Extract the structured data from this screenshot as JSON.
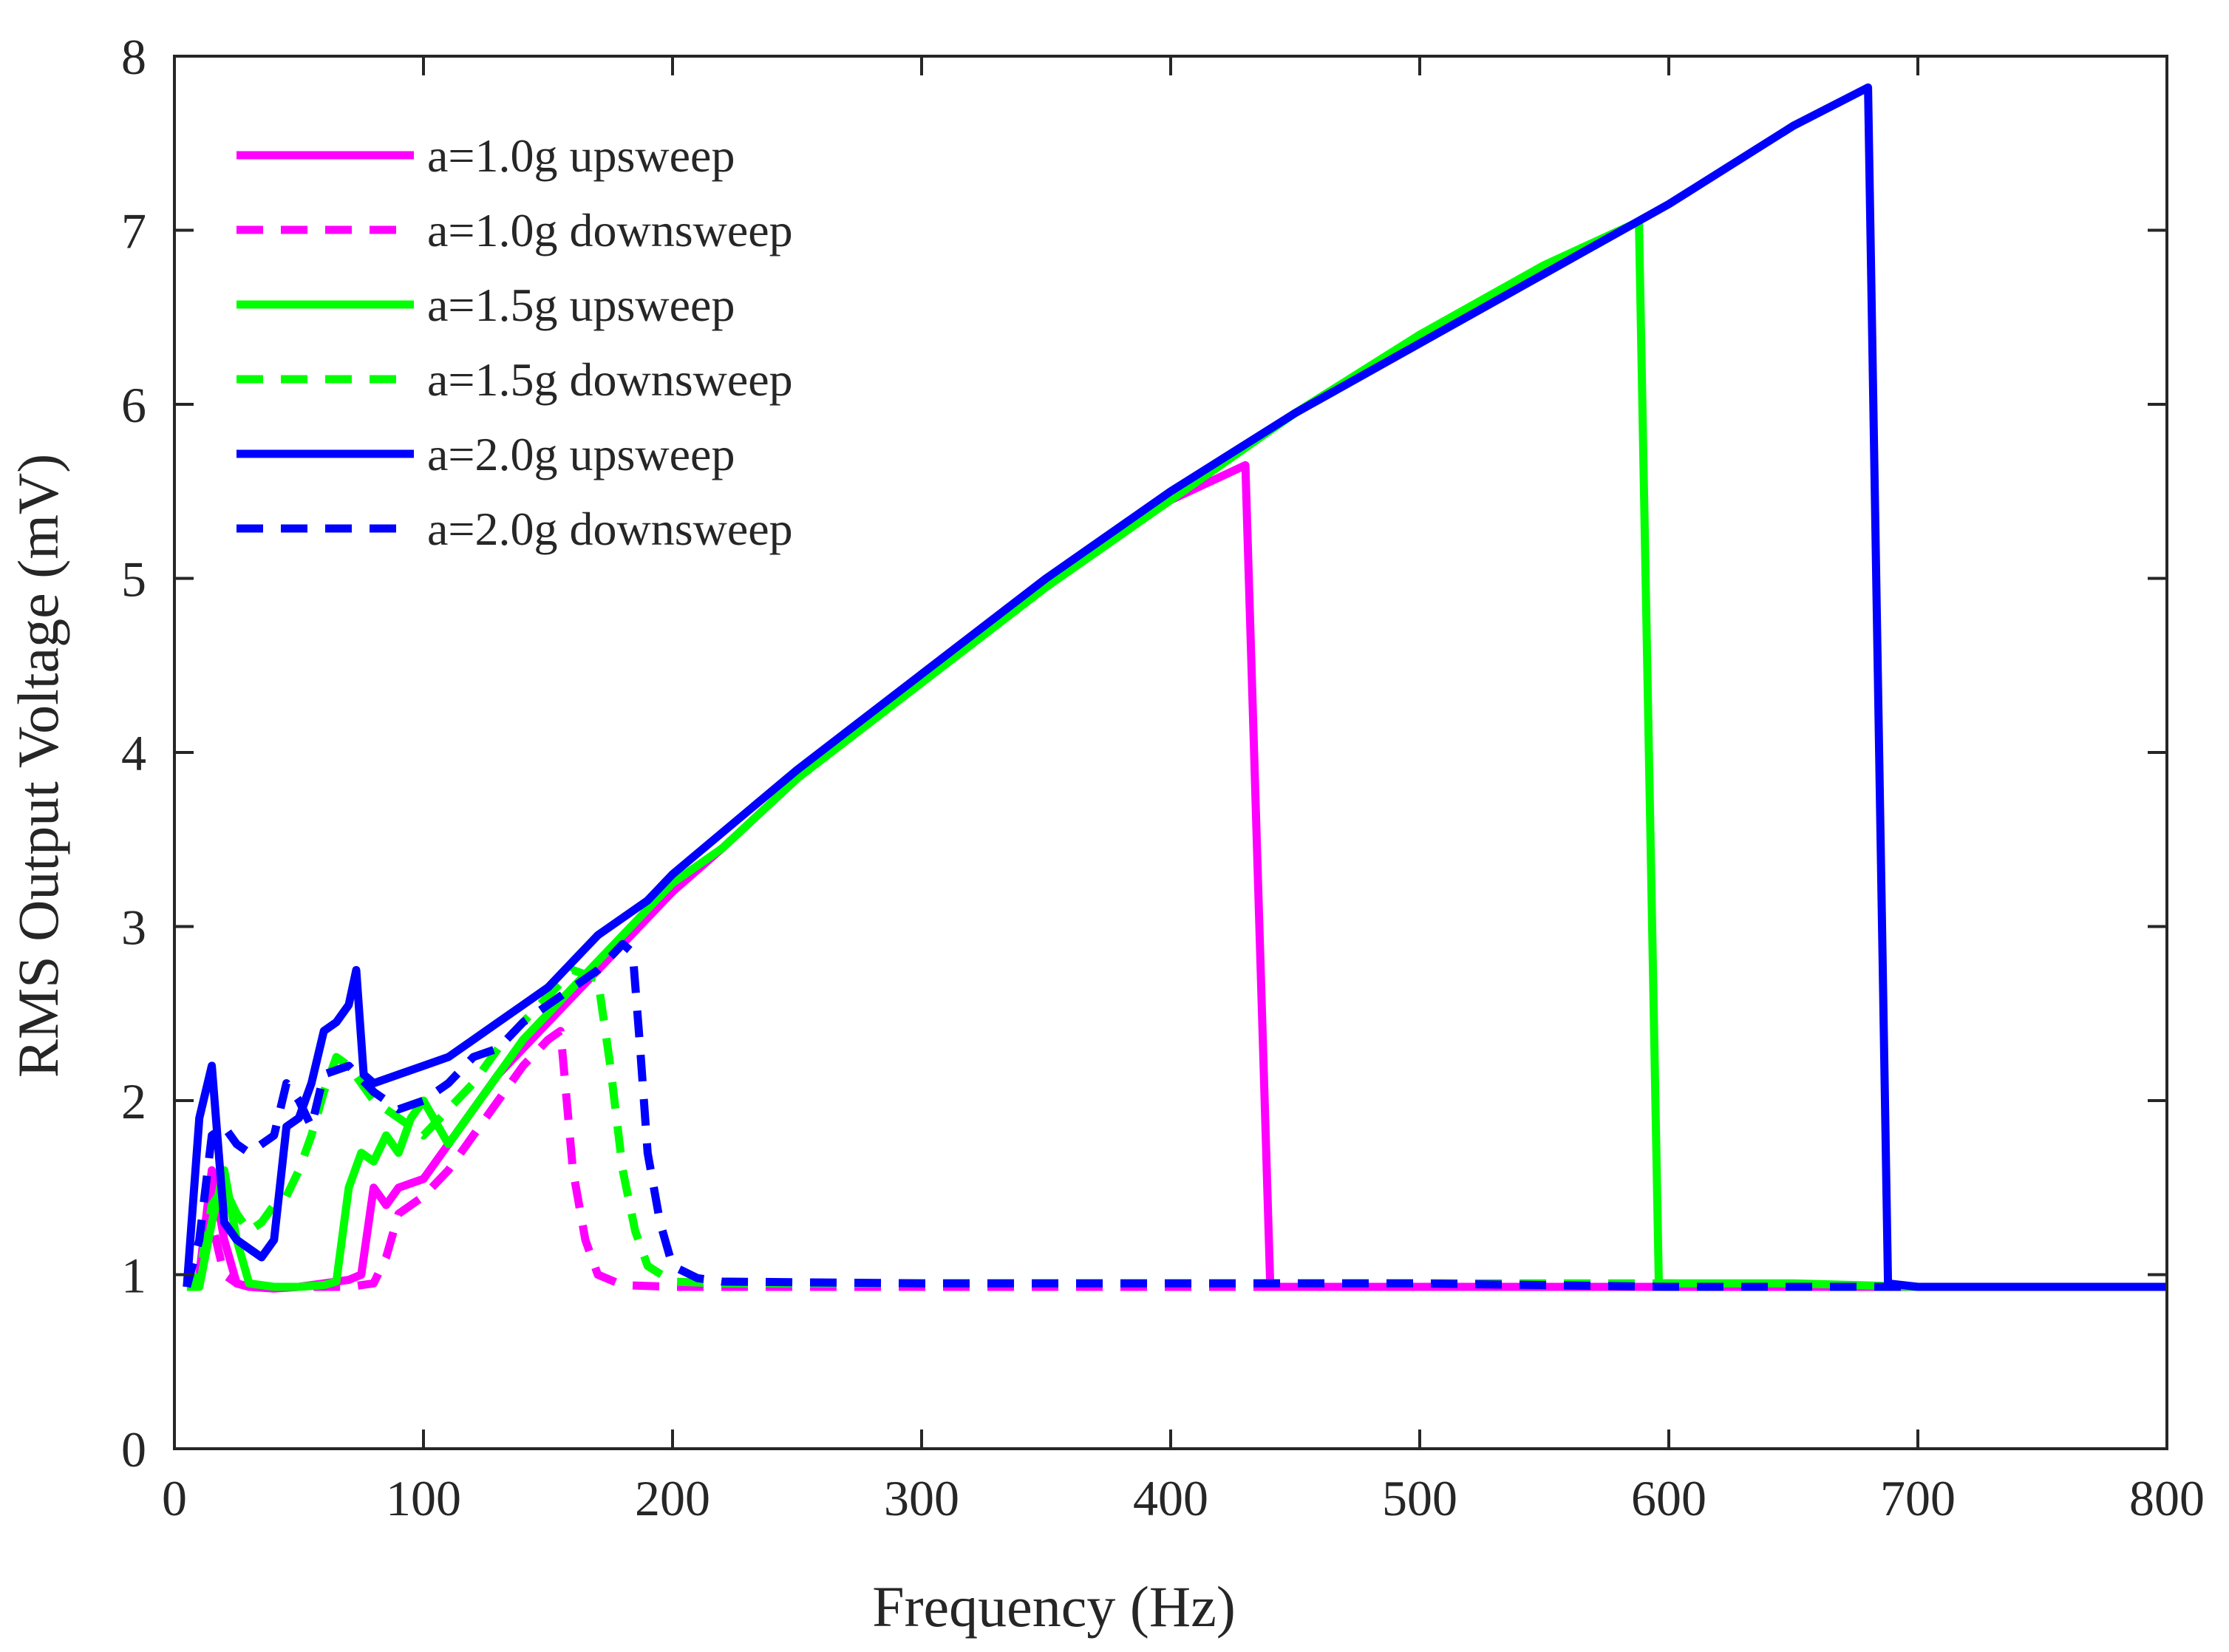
{
  "chart_data": {
    "type": "line",
    "title": "",
    "xlabel": "Frequency (Hz)",
    "ylabel": "RMS Output Voltage (mV)",
    "xlim": [
      0,
      800
    ],
    "ylim": [
      0,
      8
    ],
    "xticks": [
      0,
      100,
      200,
      300,
      400,
      500,
      600,
      700,
      800
    ],
    "yticks": [
      0,
      1,
      2,
      3,
      4,
      5,
      6,
      7,
      8
    ],
    "xtick_labels": [
      "0",
      "100",
      "200",
      "300",
      "400",
      "500",
      "600",
      "700",
      "800"
    ],
    "ytick_labels": [
      "0",
      "1",
      "2",
      "3",
      "4",
      "5",
      "6",
      "7",
      "8"
    ],
    "grid": false,
    "legend_position": "top-left",
    "series": [
      {
        "name": "a=1.0g upsweep",
        "color": "#ff00ff",
        "style": "solid",
        "x": [
          5,
          10,
          15,
          20,
          25,
          30,
          40,
          50,
          60,
          70,
          75,
          80,
          85,
          90,
          100,
          110,
          120,
          130,
          140,
          150,
          160,
          170,
          180,
          190,
          200,
          220,
          250,
          300,
          350,
          400,
          430,
          440,
          500,
          600,
          700,
          800
        ],
        "y": [
          0.93,
          1.0,
          1.6,
          1.2,
          0.95,
          0.93,
          0.92,
          0.93,
          0.95,
          0.97,
          1.0,
          1.5,
          1.4,
          1.5,
          1.55,
          1.75,
          1.95,
          2.15,
          2.3,
          2.45,
          2.6,
          2.75,
          2.9,
          3.05,
          3.2,
          3.45,
          3.85,
          4.45,
          5.0,
          5.45,
          5.65,
          0.93,
          0.93,
          0.93,
          0.93,
          0.93
        ]
      },
      {
        "name": "a=1.0g downsweep",
        "color": "#ff00ff",
        "style": "dashed",
        "x": [
          800,
          700,
          600,
          500,
          400,
          300,
          200,
          180,
          170,
          165,
          160,
          155,
          150,
          140,
          130,
          120,
          110,
          100,
          90,
          85,
          80,
          70,
          60,
          50,
          40,
          30,
          25,
          20,
          15,
          10,
          5
        ],
        "y": [
          0.93,
          0.93,
          0.93,
          0.93,
          0.93,
          0.93,
          0.93,
          0.94,
          1.0,
          1.2,
          1.6,
          2.4,
          2.35,
          2.2,
          2.0,
          1.8,
          1.6,
          1.45,
          1.35,
          1.1,
          0.95,
          0.93,
          0.93,
          0.93,
          0.93,
          0.93,
          0.95,
          1.0,
          1.3,
          1.0,
          0.93
        ]
      },
      {
        "name": "a=1.5g upsweep",
        "color": "#00ff00",
        "style": "solid",
        "x": [
          5,
          10,
          15,
          20,
          25,
          30,
          40,
          50,
          60,
          65,
          70,
          75,
          80,
          85,
          90,
          95,
          100,
          110,
          120,
          130,
          140,
          150,
          160,
          170,
          180,
          190,
          200,
          220,
          250,
          300,
          350,
          400,
          450,
          500,
          550,
          588,
          596,
          650,
          700,
          800
        ],
        "y": [
          0.93,
          0.93,
          1.3,
          1.6,
          1.2,
          0.95,
          0.93,
          0.93,
          0.94,
          0.96,
          1.5,
          1.7,
          1.65,
          1.8,
          1.7,
          1.9,
          2.0,
          1.75,
          1.95,
          2.15,
          2.35,
          2.5,
          2.65,
          2.8,
          2.95,
          3.1,
          3.25,
          3.45,
          3.85,
          4.4,
          4.95,
          5.45,
          5.95,
          6.4,
          6.8,
          7.05,
          0.95,
          0.95,
          0.93,
          0.93
        ]
      },
      {
        "name": "a=1.5g downsweep",
        "color": "#00ff00",
        "style": "dashed",
        "x": [
          800,
          700,
          600,
          500,
          400,
          300,
          220,
          200,
          190,
          185,
          180,
          175,
          170,
          160,
          150,
          140,
          130,
          120,
          110,
          100,
          90,
          80,
          70,
          65,
          60,
          55,
          50,
          45,
          40,
          35,
          30,
          25,
          20,
          15,
          10,
          5
        ],
        "y": [
          0.93,
          0.93,
          0.95,
          0.95,
          0.95,
          0.95,
          0.95,
          0.96,
          1.05,
          1.25,
          1.6,
          2.2,
          2.7,
          2.75,
          2.6,
          2.45,
          2.3,
          2.1,
          1.95,
          1.8,
          1.9,
          2.0,
          2.2,
          2.25,
          2.05,
          1.8,
          1.6,
          1.45,
          1.4,
          1.3,
          1.25,
          1.35,
          1.5,
          1.4,
          1.0,
          0.93
        ]
      },
      {
        "name": "a=2.0g upsweep",
        "color": "#0000ff",
        "style": "solid",
        "x": [
          5,
          10,
          15,
          20,
          25,
          30,
          35,
          40,
          45,
          50,
          55,
          60,
          65,
          70,
          73,
          76,
          80,
          90,
          100,
          110,
          120,
          130,
          140,
          150,
          160,
          170,
          180,
          190,
          200,
          250,
          300,
          350,
          400,
          450,
          500,
          550,
          600,
          650,
          680,
          688,
          700,
          800
        ],
        "y": [
          0.93,
          1.9,
          2.2,
          1.3,
          1.2,
          1.15,
          1.1,
          1.2,
          1.85,
          1.9,
          2.1,
          2.4,
          2.45,
          2.55,
          2.75,
          2.15,
          2.1,
          2.15,
          2.2,
          2.25,
          2.35,
          2.45,
          2.55,
          2.65,
          2.8,
          2.95,
          3.05,
          3.15,
          3.3,
          3.9,
          4.45,
          5.0,
          5.5,
          5.95,
          6.35,
          6.75,
          7.15,
          7.6,
          7.82,
          0.95,
          0.93,
          0.93
        ]
      },
      {
        "name": "a=2.0g downsweep",
        "color": "#0000ff",
        "style": "dashed",
        "x": [
          800,
          700,
          600,
          500,
          400,
          300,
          220,
          210,
          200,
          195,
          190,
          187,
          184,
          180,
          170,
          160,
          150,
          140,
          130,
          120,
          110,
          100,
          90,
          80,
          70,
          60,
          55,
          50,
          45,
          40,
          30,
          25,
          20,
          15,
          10,
          5
        ],
        "y": [
          0.93,
          0.93,
          0.93,
          0.95,
          0.95,
          0.95,
          0.96,
          0.98,
          1.05,
          1.3,
          1.7,
          2.3,
          2.85,
          2.9,
          2.75,
          2.65,
          2.55,
          2.45,
          2.3,
          2.25,
          2.1,
          2.0,
          1.95,
          2.05,
          2.2,
          2.15,
          1.85,
          2.0,
          2.1,
          1.8,
          1.7,
          1.75,
          1.85,
          1.8,
          1.2,
          0.93
        ]
      }
    ]
  }
}
